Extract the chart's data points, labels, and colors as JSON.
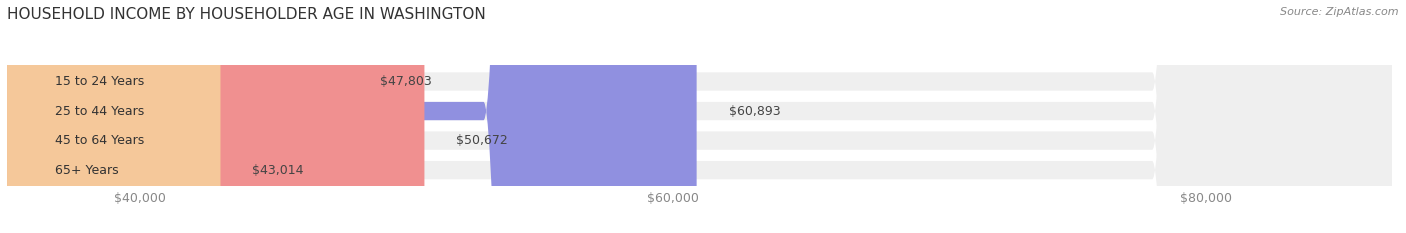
{
  "title": "HOUSEHOLD INCOME BY HOUSEHOLDER AGE IN WASHINGTON",
  "source": "Source: ZipAtlas.com",
  "categories": [
    "15 to 24 Years",
    "25 to 44 Years",
    "45 to 64 Years",
    "65+ Years"
  ],
  "values": [
    47803,
    60893,
    50672,
    43014
  ],
  "bar_colors": [
    "#5dc8c8",
    "#9090e0",
    "#f09090",
    "#f5c89a"
  ],
  "bar_bg_color": "#efefef",
  "value_labels": [
    "$47,803",
    "$60,893",
    "$50,672",
    "$43,014"
  ],
  "x_min": 35000,
  "x_max": 87000,
  "xticks": [
    40000,
    60000,
    80000
  ],
  "xtick_labels": [
    "$40,000",
    "$60,000",
    "$80,000"
  ],
  "background_color": "#ffffff",
  "title_fontsize": 11,
  "source_fontsize": 8,
  "label_fontsize": 9,
  "tick_fontsize": 9
}
